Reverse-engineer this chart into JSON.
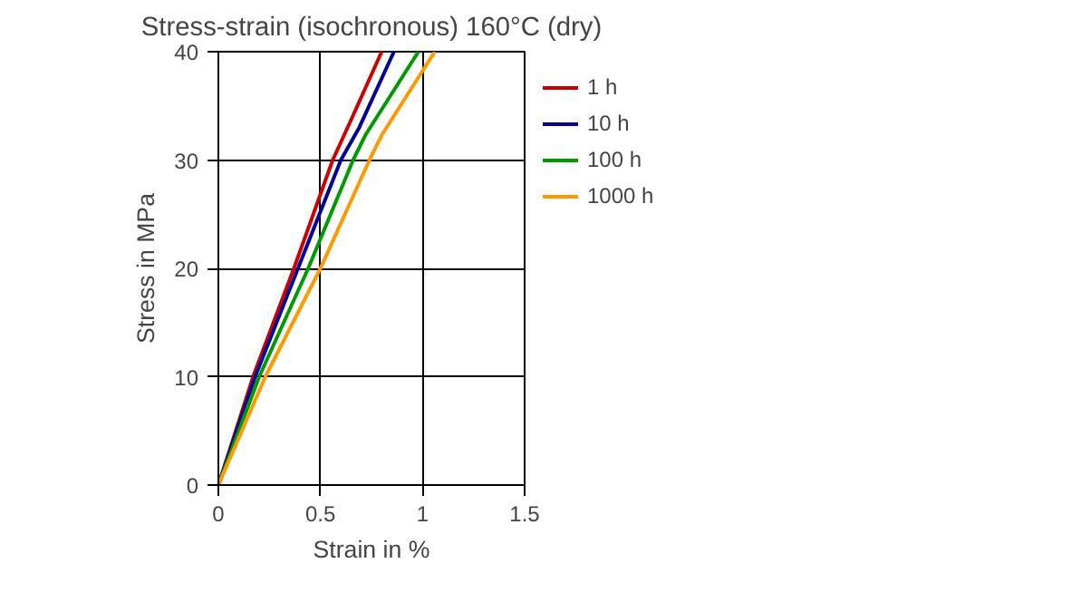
{
  "chart_data": {
    "type": "line",
    "title": "Stress-strain (isochronous) 160°C (dry)",
    "xlabel": "Strain in %",
    "ylabel": "Stress in MPa",
    "xlim": [
      0,
      1.5
    ],
    "ylim": [
      0,
      40
    ],
    "xticks": [
      0,
      0.5,
      1,
      1.5
    ],
    "yticks": [
      0,
      10,
      20,
      30,
      40
    ],
    "grid": true,
    "legend": "right",
    "marker": "none",
    "line_style": "solid",
    "series": [
      {
        "name": "1 h",
        "color": "#cc0000",
        "x": [
          0,
          0.17,
          0.37,
          0.56,
          0.65,
          0.8
        ],
        "values": [
          0,
          10,
          20,
          30,
          33.7,
          40
        ]
      },
      {
        "name": "10 h",
        "color": "#000099",
        "x": [
          0,
          0.18,
          0.39,
          0.6,
          0.69,
          0.86
        ],
        "values": [
          0,
          10,
          20,
          30,
          33,
          40
        ]
      },
      {
        "name": "100 h",
        "color": "#009900",
        "x": [
          0,
          0.2,
          0.44,
          0.66,
          0.72,
          0.98
        ],
        "values": [
          0,
          10,
          20,
          30,
          32.3,
          40
        ]
      },
      {
        "name": "1000 h",
        "color": "#ff9900",
        "x": [
          0,
          0.23,
          0.5,
          0.74,
          0.8,
          1.06
        ],
        "values": [
          0,
          10,
          20,
          30,
          32.3,
          40
        ]
      }
    ]
  }
}
